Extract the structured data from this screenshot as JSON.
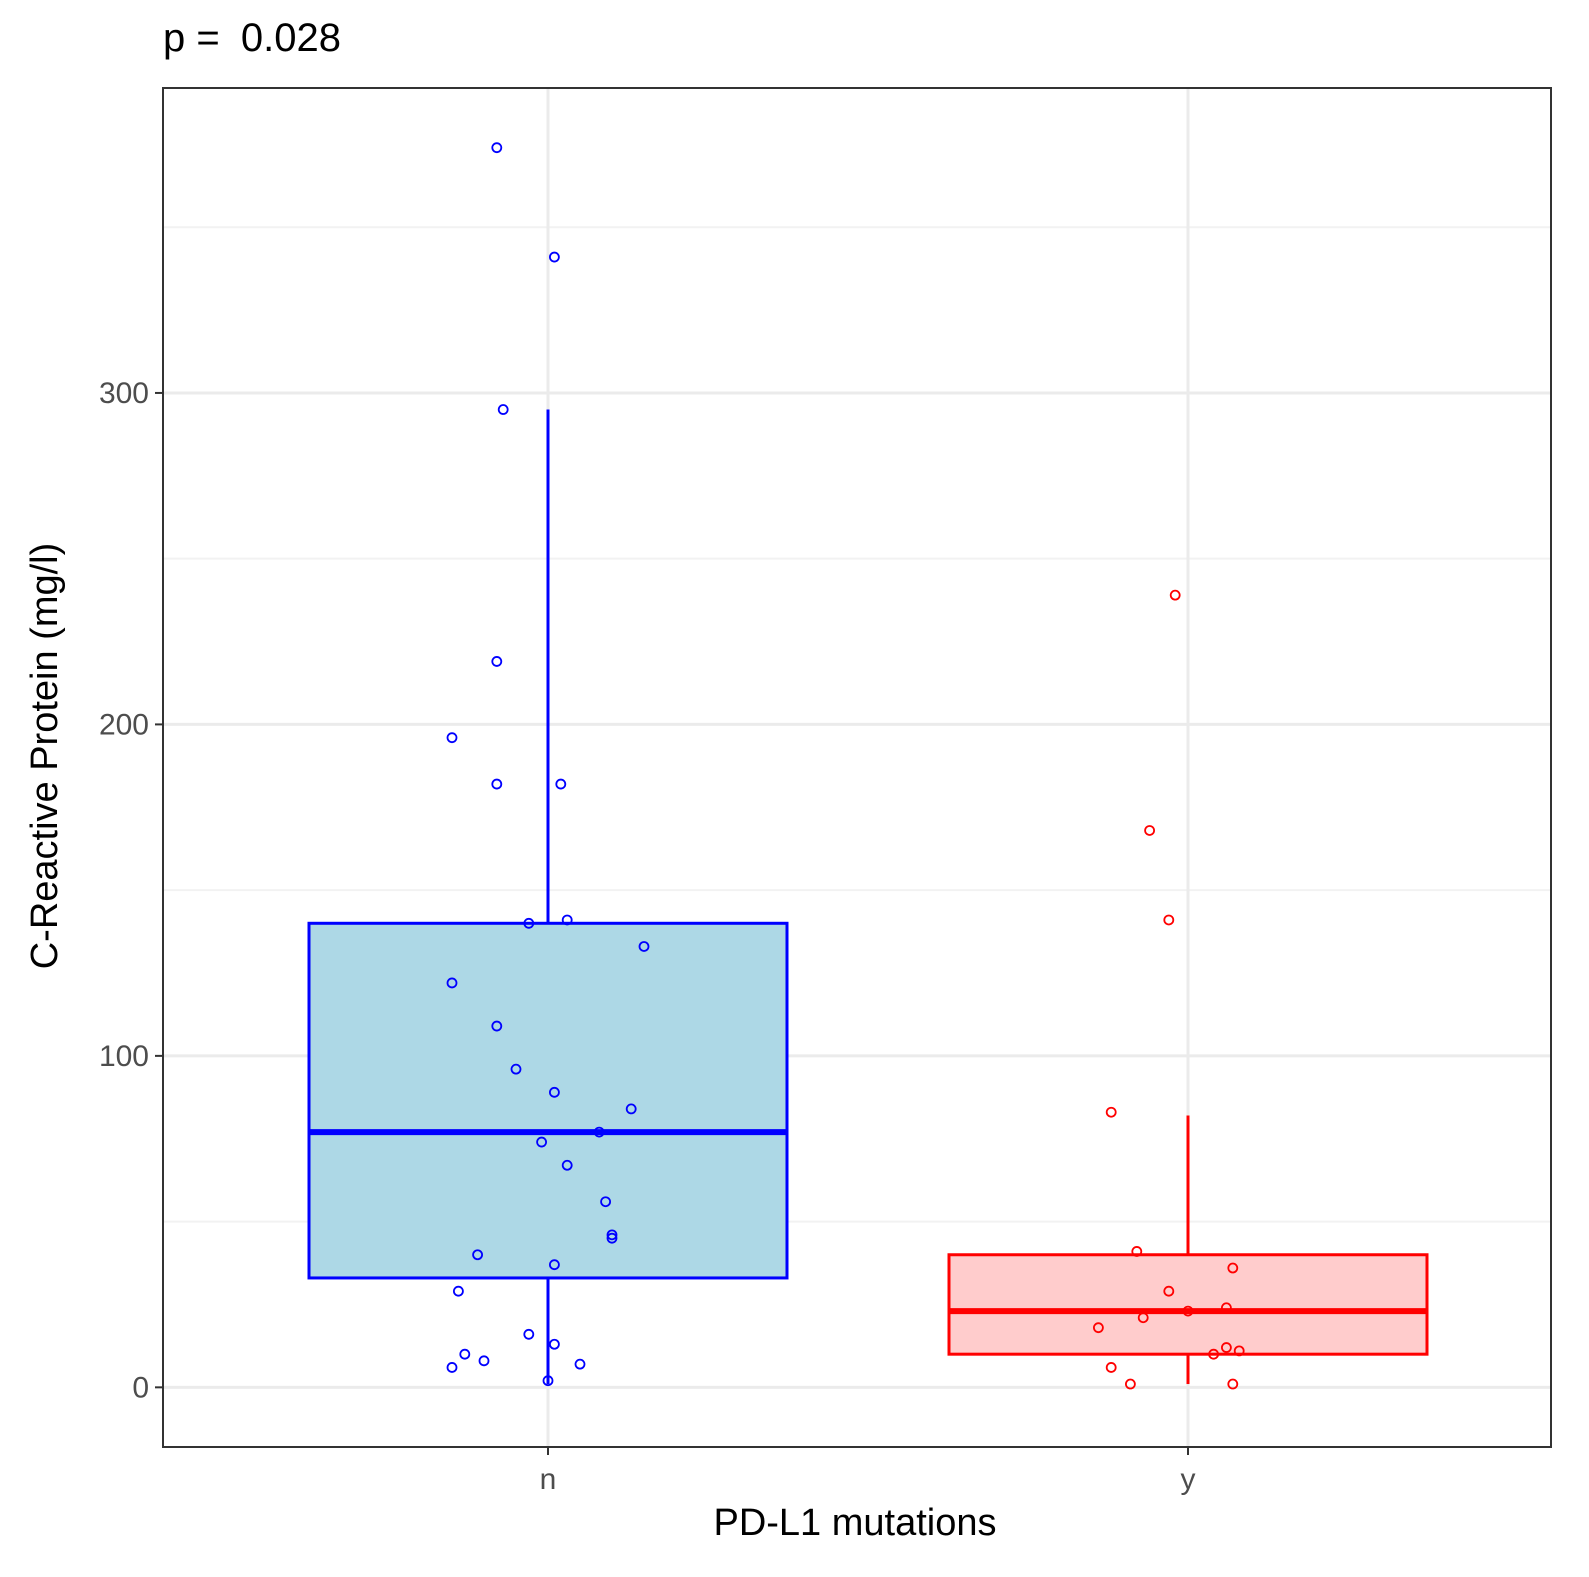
{
  "chart_data": {
    "type": "box",
    "subtitle": {
      "label": "p = ",
      "value": "0.028"
    },
    "xlabel": "PD-L1 mutations",
    "ylabel": "C-Reactive Protein (mg/l)",
    "categories": [
      "n",
      "y"
    ],
    "y_ticks": [
      0,
      100,
      200,
      300
    ],
    "y_tick_labels": [
      "0",
      "100",
      "200",
      "300"
    ],
    "ylim": [
      -18,
      392
    ],
    "grid": true,
    "series": [
      {
        "category": "n",
        "color": "#0000ff",
        "fill": "#add8e6",
        "box": {
          "whisker_low": 1,
          "q1": 33,
          "median": 77,
          "q3": 140,
          "whisker_high": 295
        },
        "points": [
          {
            "dx": -0.08,
            "y": 374
          },
          {
            "dx": 0.01,
            "y": 341
          },
          {
            "dx": -0.07,
            "y": 295
          },
          {
            "dx": -0.08,
            "y": 219
          },
          {
            "dx": -0.15,
            "y": 196
          },
          {
            "dx": -0.08,
            "y": 182
          },
          {
            "dx": 0.02,
            "y": 182
          },
          {
            "dx": -0.03,
            "y": 140
          },
          {
            "dx": 0.03,
            "y": 141
          },
          {
            "dx": 0.15,
            "y": 133
          },
          {
            "dx": -0.15,
            "y": 122
          },
          {
            "dx": -0.08,
            "y": 109
          },
          {
            "dx": -0.05,
            "y": 96
          },
          {
            "dx": 0.01,
            "y": 89
          },
          {
            "dx": 0.13,
            "y": 84
          },
          {
            "dx": 0.08,
            "y": 77
          },
          {
            "dx": -0.01,
            "y": 74
          },
          {
            "dx": 0.03,
            "y": 67
          },
          {
            "dx": 0.09,
            "y": 56
          },
          {
            "dx": 0.1,
            "y": 46
          },
          {
            "dx": 0.1,
            "y": 45
          },
          {
            "dx": -0.11,
            "y": 40
          },
          {
            "dx": 0.01,
            "y": 37
          },
          {
            "dx": -0.14,
            "y": 29
          },
          {
            "dx": -0.03,
            "y": 16
          },
          {
            "dx": 0.01,
            "y": 13
          },
          {
            "dx": -0.13,
            "y": 10
          },
          {
            "dx": -0.1,
            "y": 8
          },
          {
            "dx": -0.15,
            "y": 6
          },
          {
            "dx": 0.05,
            "y": 7
          },
          {
            "dx": 0.0,
            "y": 2
          }
        ]
      },
      {
        "category": "y",
        "color": "#ff0000",
        "fill": "#ffcccc",
        "box": {
          "whisker_low": 1,
          "q1": 10,
          "median": 23,
          "q3": 40,
          "whisker_high": 82
        },
        "points": [
          {
            "dx": -0.02,
            "y": 239
          },
          {
            "dx": -0.06,
            "y": 168
          },
          {
            "dx": -0.03,
            "y": 141
          },
          {
            "dx": -0.12,
            "y": 83
          },
          {
            "dx": -0.08,
            "y": 41
          },
          {
            "dx": 0.07,
            "y": 36
          },
          {
            "dx": -0.03,
            "y": 29
          },
          {
            "dx": 0.06,
            "y": 24
          },
          {
            "dx": 0.0,
            "y": 23
          },
          {
            "dx": -0.07,
            "y": 21
          },
          {
            "dx": -0.14,
            "y": 18
          },
          {
            "dx": 0.06,
            "y": 12
          },
          {
            "dx": 0.08,
            "y": 11
          },
          {
            "dx": 0.04,
            "y": 10
          },
          {
            "dx": -0.12,
            "y": 6
          },
          {
            "dx": -0.09,
            "y": 1
          },
          {
            "dx": 0.07,
            "y": 1
          }
        ]
      }
    ]
  }
}
